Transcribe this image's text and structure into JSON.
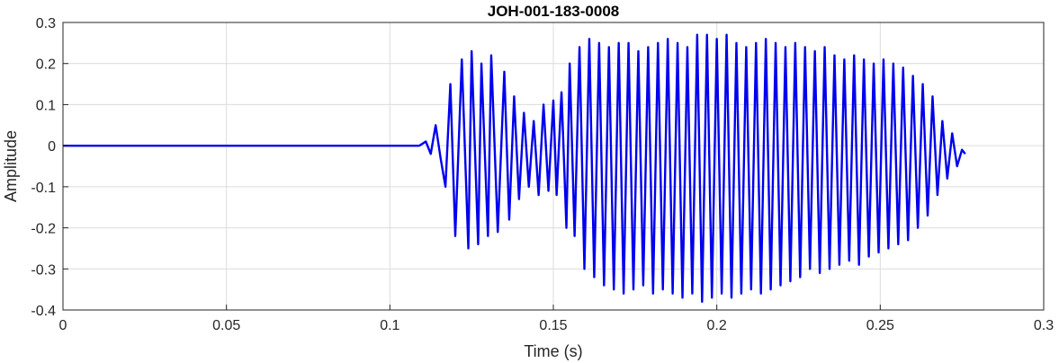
{
  "chart_data": {
    "type": "line",
    "title": "JOH-001-183-0008",
    "xlabel": "Time (s)",
    "ylabel": "Amplitude",
    "xlim": [
      0,
      0.3
    ],
    "ylim": [
      -0.4,
      0.3
    ],
    "x_ticks": [
      "0",
      "0.05",
      "0.1",
      "0.15",
      "0.2",
      "0.25",
      "0.3"
    ],
    "y_ticks": [
      "0.3",
      "0.2",
      "0.1",
      "0",
      "-0.1",
      "-0.2",
      "-0.3",
      "-0.4"
    ],
    "grid": true,
    "colors": {
      "line": "#0000ee",
      "grid": "#dcdcdc",
      "axes": "#262626"
    },
    "series": [
      {
        "x": [
          0,
          0.01,
          0.02,
          0.03,
          0.04,
          0.05,
          0.06,
          0.07,
          0.08,
          0.09,
          0.1,
          0.105,
          0.109,
          0.111,
          0.1125,
          0.114,
          0.1155,
          0.117,
          0.1185,
          0.12,
          0.122,
          0.124,
          0.125,
          0.127,
          0.128,
          0.13,
          0.131,
          0.133,
          0.135,
          0.1365,
          0.138,
          0.1395,
          0.141,
          0.1425,
          0.144,
          0.1455,
          0.147,
          0.1485,
          0.15,
          0.151,
          0.1525,
          0.154,
          0.155,
          0.1565,
          0.158,
          0.1595,
          0.161,
          0.1625,
          0.164,
          0.1655,
          0.167,
          0.1685,
          0.17,
          0.1715,
          0.173,
          0.1745,
          0.176,
          0.1775,
          0.179,
          0.1805,
          0.182,
          0.1835,
          0.185,
          0.1865,
          0.188,
          0.1895,
          0.191,
          0.1925,
          0.194,
          0.1955,
          0.197,
          0.1985,
          0.2,
          0.2015,
          0.203,
          0.2045,
          0.206,
          0.2075,
          0.209,
          0.2105,
          0.212,
          0.2135,
          0.215,
          0.2165,
          0.218,
          0.2195,
          0.221,
          0.2225,
          0.224,
          0.2255,
          0.227,
          0.2285,
          0.23,
          0.2315,
          0.233,
          0.2345,
          0.236,
          0.2375,
          0.239,
          0.2405,
          0.242,
          0.2435,
          0.245,
          0.2465,
          0.248,
          0.2495,
          0.251,
          0.2525,
          0.254,
          0.2555,
          0.257,
          0.2585,
          0.26,
          0.2615,
          0.263,
          0.2645,
          0.266,
          0.2675,
          0.269,
          0.2705,
          0.272,
          0.2735,
          0.275,
          0.276
        ],
        "y": [
          0,
          0,
          0,
          0,
          0,
          0,
          0,
          0,
          0,
          0,
          0,
          0,
          0,
          0.01,
          -0.02,
          0.05,
          -0.03,
          -0.1,
          0.15,
          -0.22,
          0.21,
          -0.25,
          0.23,
          -0.24,
          0.2,
          -0.22,
          0.22,
          -0.21,
          0.18,
          -0.18,
          0.12,
          -0.13,
          0.08,
          -0.1,
          0.06,
          -0.12,
          0.1,
          -0.11,
          0.11,
          -0.12,
          0.13,
          -0.2,
          0.2,
          -0.22,
          0.24,
          -0.3,
          0.26,
          -0.32,
          0.25,
          -0.34,
          0.24,
          -0.35,
          0.25,
          -0.36,
          0.25,
          -0.35,
          0.23,
          -0.34,
          0.24,
          -0.36,
          0.25,
          -0.35,
          0.26,
          -0.36,
          0.25,
          -0.37,
          0.24,
          -0.36,
          0.27,
          -0.38,
          0.27,
          -0.37,
          0.26,
          -0.36,
          0.27,
          -0.37,
          0.25,
          -0.36,
          0.24,
          -0.35,
          0.25,
          -0.36,
          0.26,
          -0.35,
          0.25,
          -0.34,
          0.24,
          -0.33,
          0.25,
          -0.32,
          0.24,
          -0.3,
          0.23,
          -0.31,
          0.24,
          -0.3,
          0.22,
          -0.29,
          0.21,
          -0.28,
          0.22,
          -0.29,
          0.21,
          -0.27,
          0.2,
          -0.26,
          0.21,
          -0.25,
          0.2,
          -0.24,
          0.19,
          -0.23,
          0.17,
          -0.2,
          0.15,
          -0.17,
          0.12,
          -0.12,
          0.06,
          -0.08,
          0.03,
          -0.05,
          -0.01,
          -0.02
        ],
        "values_note": ""
      }
    ]
  }
}
